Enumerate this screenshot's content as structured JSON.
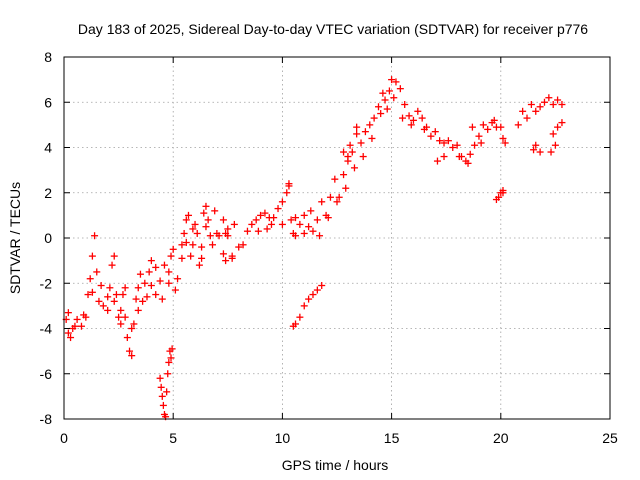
{
  "chart_data": {
    "type": "scatter",
    "title": "Day 183 of 2025, Sidereal Day-to-day VTEC variation (SDTVAR) for receiver p776",
    "xlabel": "GPS time / hours",
    "ylabel": "SDTVAR / TECUs",
    "xlim": [
      0,
      25
    ],
    "ylim": [
      -8,
      8
    ],
    "xticks": [
      "0",
      "5",
      "10",
      "15",
      "20",
      "25"
    ],
    "yticks": [
      "-8",
      "-6",
      "-4",
      "-2",
      "0",
      "2",
      "4",
      "6",
      "8"
    ],
    "grid": true,
    "marker": "+",
    "color": "#ff0000",
    "series": [
      {
        "name": "main-trace",
        "points": [
          [
            0.1,
            -3.6
          ],
          [
            0.2,
            -4.2
          ],
          [
            0.3,
            -4.4
          ],
          [
            0.4,
            -4.0
          ],
          [
            0.6,
            -3.6
          ],
          [
            0.8,
            -3.9
          ],
          [
            1.0,
            -3.5
          ],
          [
            1.1,
            -2.5
          ],
          [
            1.2,
            -1.8
          ],
          [
            1.3,
            -0.8
          ],
          [
            1.4,
            0.1
          ],
          [
            1.5,
            -1.5
          ],
          [
            1.6,
            -2.8
          ],
          [
            1.8,
            -3.0
          ],
          [
            2.0,
            -2.6
          ],
          [
            2.1,
            -2.2
          ],
          [
            2.2,
            -1.2
          ],
          [
            2.3,
            -0.8
          ],
          [
            2.4,
            -2.5
          ],
          [
            2.5,
            -3.5
          ],
          [
            2.6,
            -3.2
          ],
          [
            2.7,
            -2.5
          ],
          [
            2.8,
            -3.5
          ],
          [
            2.9,
            -4.4
          ],
          [
            3.0,
            -5.0
          ],
          [
            3.1,
            -5.2
          ],
          [
            3.2,
            -3.8
          ],
          [
            3.3,
            -2.7
          ],
          [
            3.4,
            -2.2
          ],
          [
            3.5,
            -1.6
          ],
          [
            3.6,
            -2.8
          ],
          [
            3.8,
            -2.6
          ],
          [
            3.9,
            -1.5
          ],
          [
            4.0,
            -1.0
          ],
          [
            4.2,
            -2.5
          ],
          [
            4.4,
            -1.9
          ],
          [
            4.6,
            -1.2
          ],
          [
            4.8,
            -1.5
          ],
          [
            4.9,
            -0.8
          ],
          [
            5.0,
            -0.5
          ],
          [
            5.2,
            -1.8
          ],
          [
            5.4,
            -0.9
          ],
          [
            5.5,
            0.2
          ],
          [
            5.6,
            0.8
          ],
          [
            5.7,
            1.0
          ],
          [
            5.8,
            -0.8
          ],
          [
            5.9,
            -0.3
          ],
          [
            6.0,
            0.6
          ],
          [
            6.1,
            0.2
          ],
          [
            6.2,
            -1.2
          ],
          [
            6.3,
            -0.4
          ],
          [
            6.4,
            1.1
          ],
          [
            6.5,
            1.4
          ],
          [
            6.6,
            0.8
          ],
          [
            6.7,
            0.1
          ],
          [
            6.8,
            -0.3
          ],
          [
            6.9,
            1.2
          ],
          [
            7.3,
            0.8
          ],
          [
            7.4,
            0.2
          ],
          [
            7.5,
            0.1
          ],
          [
            7.7,
            -0.8
          ],
          [
            7.8,
            0.6
          ],
          [
            8.0,
            -0.4
          ],
          [
            8.2,
            -0.3
          ],
          [
            8.4,
            0.3
          ],
          [
            8.6,
            0.6
          ],
          [
            8.8,
            0.8
          ],
          [
            9.0,
            1.0
          ],
          [
            9.2,
            1.1
          ],
          [
            9.4,
            0.9
          ],
          [
            9.5,
            0.6
          ],
          [
            9.6,
            0.9
          ],
          [
            9.8,
            1.3
          ],
          [
            10.0,
            1.6
          ],
          [
            10.2,
            2.0
          ],
          [
            10.3,
            2.3
          ],
          [
            10.4,
            0.8
          ],
          [
            10.5,
            0.2
          ],
          [
            10.6,
            0.1
          ],
          [
            10.8,
            0.6
          ],
          [
            11.0,
            1.0
          ],
          [
            11.2,
            0.5
          ],
          [
            11.4,
            0.3
          ],
          [
            11.6,
            0.8
          ],
          [
            11.8,
            1.6
          ],
          [
            12.0,
            1.0
          ],
          [
            12.2,
            1.8
          ],
          [
            12.4,
            2.6
          ],
          [
            12.6,
            1.8
          ],
          [
            12.8,
            2.8
          ],
          [
            13.0,
            3.4
          ],
          [
            13.2,
            3.8
          ],
          [
            13.4,
            4.6
          ],
          [
            13.6,
            4.2
          ],
          [
            13.8,
            4.7
          ],
          [
            14.0,
            5.0
          ],
          [
            14.2,
            5.3
          ],
          [
            14.4,
            5.8
          ],
          [
            14.6,
            6.4
          ],
          [
            14.8,
            5.7
          ],
          [
            14.9,
            6.5
          ],
          [
            15.0,
            7.0
          ],
          [
            15.2,
            6.9
          ],
          [
            15.4,
            6.6
          ],
          [
            15.6,
            5.9
          ],
          [
            15.8,
            5.4
          ],
          [
            16.0,
            5.2
          ],
          [
            16.2,
            5.6
          ],
          [
            16.4,
            5.3
          ],
          [
            16.6,
            4.9
          ],
          [
            16.8,
            4.5
          ],
          [
            17.0,
            4.7
          ],
          [
            17.2,
            4.3
          ],
          [
            17.4,
            4.2
          ],
          [
            17.6,
            4.3
          ],
          [
            17.8,
            4.0
          ],
          [
            18.0,
            4.1
          ],
          [
            18.2,
            3.6
          ],
          [
            18.4,
            3.4
          ],
          [
            18.6,
            3.7
          ],
          [
            18.8,
            4.1
          ],
          [
            19.0,
            4.5
          ],
          [
            19.2,
            5.0
          ],
          [
            19.4,
            4.8
          ],
          [
            19.6,
            5.1
          ],
          [
            19.8,
            4.9
          ],
          [
            20.0,
            4.9
          ],
          [
            20.1,
            4.4
          ],
          [
            20.2,
            4.2
          ],
          [
            20.8,
            5.0
          ],
          [
            21.0,
            5.6
          ],
          [
            21.2,
            5.3
          ],
          [
            21.4,
            5.9
          ],
          [
            21.6,
            5.6
          ],
          [
            21.8,
            5.8
          ],
          [
            22.0,
            6.0
          ],
          [
            22.2,
            6.2
          ],
          [
            22.4,
            5.9
          ],
          [
            22.6,
            6.1
          ],
          [
            22.8,
            5.9
          ],
          [
            22.4,
            4.6
          ],
          [
            22.6,
            4.9
          ],
          [
            22.8,
            5.1
          ]
        ]
      },
      {
        "name": "secondary-traces",
        "points": [
          [
            0.2,
            -3.3
          ],
          [
            0.5,
            -3.9
          ],
          [
            0.9,
            -3.4
          ],
          [
            1.3,
            -2.4
          ],
          [
            1.7,
            -2.1
          ],
          [
            2.0,
            -3.2
          ],
          [
            2.3,
            -2.8
          ],
          [
            2.6,
            -3.8
          ],
          [
            2.8,
            -2.2
          ],
          [
            3.1,
            -4.0
          ],
          [
            3.4,
            -3.2
          ],
          [
            3.7,
            -2.0
          ],
          [
            4.0,
            -2.1
          ],
          [
            4.2,
            -1.3
          ],
          [
            4.5,
            -2.7
          ],
          [
            4.8,
            -2.0
          ],
          [
            5.1,
            -2.3
          ],
          [
            5.4,
            -0.3
          ],
          [
            5.6,
            -0.2
          ],
          [
            5.9,
            0.4
          ],
          [
            6.3,
            -0.9
          ],
          [
            6.5,
            0.5
          ],
          [
            7.5,
            0.4
          ],
          [
            7.7,
            -0.9
          ],
          [
            8.9,
            0.3
          ],
          [
            9.3,
            0.4
          ],
          [
            10.0,
            0.6
          ],
          [
            10.6,
            0.9
          ],
          [
            11.0,
            0.2
          ],
          [
            11.3,
            1.2
          ],
          [
            11.7,
            0.1
          ],
          [
            12.1,
            0.9
          ],
          [
            12.5,
            1.6
          ],
          [
            12.9,
            2.2
          ],
          [
            13.3,
            3.1
          ],
          [
            13.7,
            3.6
          ],
          [
            14.1,
            4.4
          ],
          [
            14.5,
            5.5
          ],
          [
            14.7,
            6.1
          ],
          [
            15.1,
            6.2
          ],
          [
            15.5,
            5.3
          ],
          [
            15.9,
            5.0
          ],
          [
            16.5,
            4.8
          ],
          [
            17.1,
            3.4
          ],
          [
            17.4,
            3.6
          ],
          [
            18.1,
            3.6
          ],
          [
            18.5,
            3.3
          ],
          [
            18.7,
            4.9
          ],
          [
            19.1,
            4.2
          ],
          [
            19.7,
            5.2
          ],
          [
            19.9,
            1.8
          ],
          [
            20.0,
            2.0
          ],
          [
            20.1,
            2.0
          ],
          [
            21.5,
            3.9
          ],
          [
            21.6,
            4.1
          ],
          [
            21.8,
            3.8
          ],
          [
            22.3,
            3.8
          ],
          [
            22.5,
            4.1
          ],
          [
            13.1,
            4.1
          ],
          [
            13.4,
            4.9
          ]
        ]
      },
      {
        "name": "isolated-segments",
        "points": [
          [
            4.4,
            -6.2
          ],
          [
            4.45,
            -6.6
          ],
          [
            4.5,
            -7.0
          ],
          [
            4.55,
            -7.4
          ],
          [
            4.6,
            -7.8
          ],
          [
            4.65,
            -7.9
          ],
          [
            4.7,
            -6.8
          ],
          [
            4.75,
            -6.0
          ],
          [
            4.8,
            -5.5
          ],
          [
            4.85,
            -5.0
          ],
          [
            4.9,
            -5.3
          ],
          [
            4.95,
            -4.9
          ],
          [
            10.5,
            -3.9
          ],
          [
            10.6,
            -3.8
          ],
          [
            10.8,
            -3.5
          ],
          [
            11.0,
            -3.0
          ],
          [
            11.2,
            -2.7
          ],
          [
            11.4,
            -2.5
          ],
          [
            11.6,
            -2.3
          ],
          [
            11.8,
            -2.1
          ],
          [
            7.0,
            0.2
          ],
          [
            7.1,
            0.1
          ],
          [
            7.3,
            -0.7
          ],
          [
            7.4,
            -1.0
          ],
          [
            10.3,
            2.4
          ],
          [
            13.0,
            3.6
          ],
          [
            12.8,
            3.8
          ],
          [
            19.8,
            1.7
          ],
          [
            20.1,
            2.1
          ]
        ]
      }
    ]
  }
}
